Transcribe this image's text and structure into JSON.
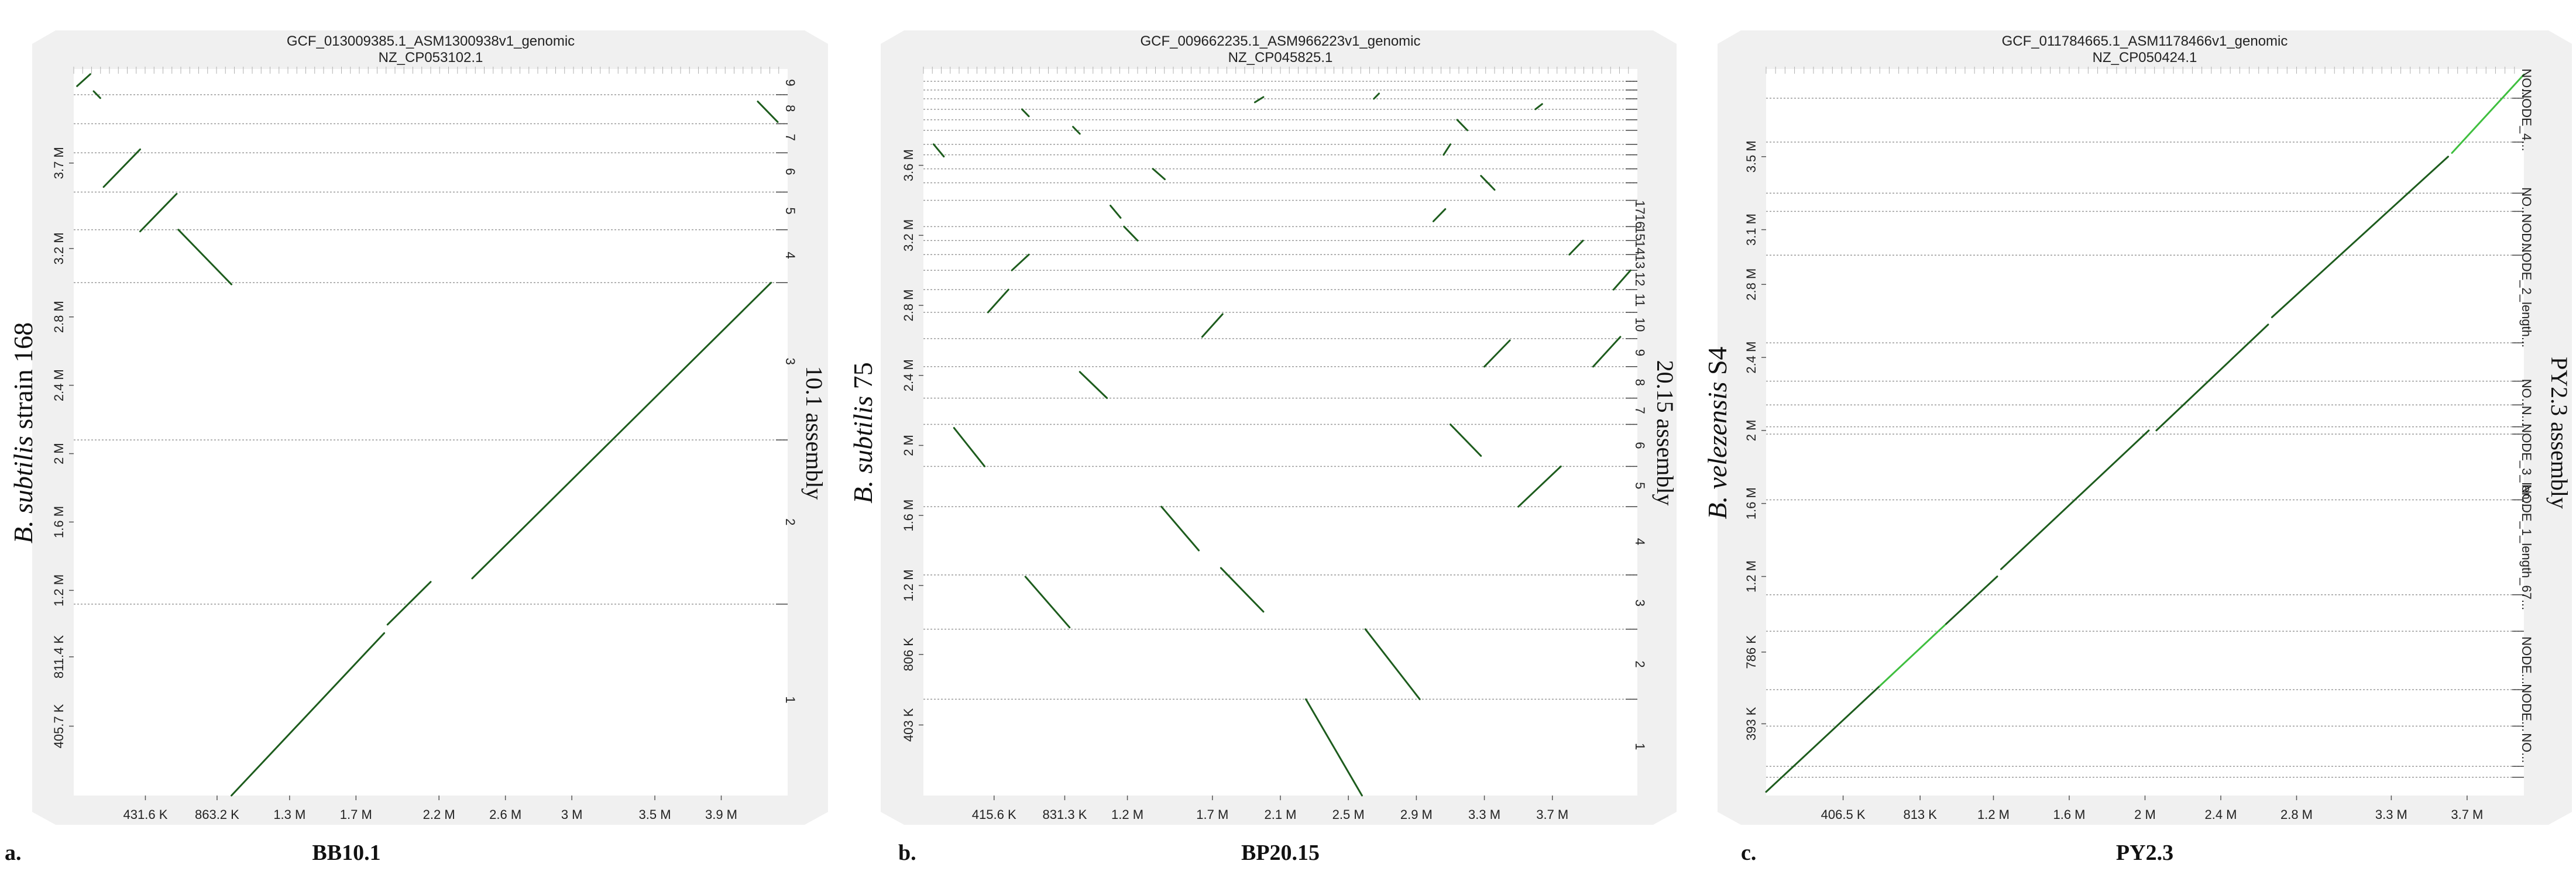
{
  "chart_data": [
    {
      "type": "scatter",
      "panel_letter": "a.",
      "panel_label": "BB10.1",
      "reference_title": "GCF_013009385.1_ASM1300938v1_genomic",
      "reference_subtitle": "NZ_CP053102.1",
      "ylabel_italic": "B. subtilis",
      "ylabel_rest": " strain 168",
      "right_label": "10.1 assembly",
      "xlim": [
        0,
        4.3
      ],
      "ylim": [
        0,
        4.25
      ],
      "x_ticks": [
        {
          "v": 0.4316,
          "label": "431.6 K"
        },
        {
          "v": 0.8632,
          "label": "863.2 K"
        },
        {
          "v": 1.3,
          "label": "1.3 M"
        },
        {
          "v": 1.7,
          "label": "1.7 M"
        },
        {
          "v": 2.2,
          "label": "2.2 M"
        },
        {
          "v": 2.6,
          "label": "2.6 M"
        },
        {
          "v": 3.0,
          "label": "3 M"
        },
        {
          "v": 3.5,
          "label": "3.5 M"
        },
        {
          "v": 3.9,
          "label": "3.9 M"
        }
      ],
      "y_ticks": [
        {
          "v": 0.4057,
          "label": "405.7 K"
        },
        {
          "v": 0.8114,
          "label": "811.4 K"
        },
        {
          "v": 1.2,
          "label": "1.2 M"
        },
        {
          "v": 1.6,
          "label": "1.6 M"
        },
        {
          "v": 2.0,
          "label": "2 M"
        },
        {
          "v": 2.4,
          "label": "2.4 M"
        },
        {
          "v": 2.8,
          "label": "2.8 M"
        },
        {
          "v": 3.2,
          "label": "3.2 M"
        },
        {
          "v": 3.7,
          "label": "3.7 M"
        }
      ],
      "contig_boundaries": [
        1.12,
        2.08,
        3.0,
        3.31,
        3.53,
        3.76,
        3.93,
        4.1
      ],
      "contig_labels": [
        {
          "v": 0.56,
          "label": "1"
        },
        {
          "v": 1.6,
          "label": "2"
        },
        {
          "v": 2.54,
          "label": "3"
        },
        {
          "v": 3.16,
          "label": "4"
        },
        {
          "v": 3.42,
          "label": "5"
        },
        {
          "v": 3.65,
          "label": "6"
        },
        {
          "v": 3.85,
          "label": "7"
        },
        {
          "v": 4.02,
          "label": "8"
        },
        {
          "v": 4.17,
          "label": "9"
        }
      ],
      "segments": [
        {
          "x1": 0.95,
          "y1": 0.0,
          "x2": 1.87,
          "y2": 0.95
        },
        {
          "x1": 1.89,
          "y1": 1.0,
          "x2": 2.15,
          "y2": 1.25
        },
        {
          "x1": 2.4,
          "y1": 1.27,
          "x2": 4.2,
          "y2": 3.0
        },
        {
          "x1": 0.63,
          "y1": 3.31,
          "x2": 0.95,
          "y2": 2.99
        },
        {
          "x1": 0.4,
          "y1": 3.3,
          "x2": 0.62,
          "y2": 3.52
        },
        {
          "x1": 0.18,
          "y1": 3.56,
          "x2": 0.4,
          "y2": 3.78
        },
        {
          "x1": 4.24,
          "y1": 3.94,
          "x2": 4.12,
          "y2": 4.06
        },
        {
          "x1": 0.02,
          "y1": 4.15,
          "x2": 0.1,
          "y2": 4.22
        },
        {
          "x1": 0.12,
          "y1": 4.12,
          "x2": 0.16,
          "y2": 4.08
        }
      ]
    },
    {
      "type": "scatter",
      "panel_letter": "b.",
      "panel_label": "BP20.15",
      "reference_title": "GCF_009662235.1_ASM966223v1_genomic",
      "reference_subtitle": "NZ_CP045825.1",
      "ylabel_italic": "B. subtilis",
      "ylabel_rest": " 75",
      "right_label": "20.15 assembly",
      "xlim": [
        0,
        4.2
      ],
      "ylim": [
        0,
        4.15
      ],
      "x_ticks": [
        {
          "v": 0.4156,
          "label": "415.6 K"
        },
        {
          "v": 0.8313,
          "label": "831.3 K"
        },
        {
          "v": 1.2,
          "label": "1.2 M"
        },
        {
          "v": 1.7,
          "label": "1.7 M"
        },
        {
          "v": 2.1,
          "label": "2.1 M"
        },
        {
          "v": 2.5,
          "label": "2.5 M"
        },
        {
          "v": 2.9,
          "label": "2.9 M"
        },
        {
          "v": 3.3,
          "label": "3.3 M"
        },
        {
          "v": 3.7,
          "label": "3.7 M"
        }
      ],
      "y_ticks": [
        {
          "v": 0.403,
          "label": "403 K"
        },
        {
          "v": 0.806,
          "label": "806 K"
        },
        {
          "v": 1.2,
          "label": "1.2 M"
        },
        {
          "v": 1.6,
          "label": "1.6 M"
        },
        {
          "v": 2.0,
          "label": "2 M"
        },
        {
          "v": 2.4,
          "label": "2.4 M"
        },
        {
          "v": 2.8,
          "label": "2.8 M"
        },
        {
          "v": 3.2,
          "label": "3.2 M"
        },
        {
          "v": 3.6,
          "label": "3.6 M"
        }
      ],
      "contig_boundaries": [
        0.55,
        0.95,
        1.26,
        1.65,
        1.88,
        2.12,
        2.27,
        2.45,
        2.61,
        2.76,
        2.89,
        3.0,
        3.09,
        3.17,
        3.25,
        3.4,
        3.5,
        3.58,
        3.66,
        3.72,
        3.8,
        3.86,
        3.92,
        3.98,
        4.03,
        4.08
      ],
      "contig_labels": [
        {
          "v": 0.28,
          "label": "1"
        },
        {
          "v": 0.75,
          "label": "2"
        },
        {
          "v": 1.1,
          "label": "3"
        },
        {
          "v": 1.45,
          "label": "4"
        },
        {
          "v": 1.77,
          "label": "5"
        },
        {
          "v": 2.0,
          "label": "6"
        },
        {
          "v": 2.2,
          "label": "7"
        },
        {
          "v": 2.36,
          "label": "8"
        },
        {
          "v": 2.53,
          "label": "9"
        },
        {
          "v": 2.69,
          "label": "10"
        },
        {
          "v": 2.83,
          "label": "11"
        },
        {
          "v": 2.95,
          "label": "12"
        },
        {
          "v": 3.05,
          "label": "13"
        },
        {
          "v": 3.13,
          "label": "14"
        },
        {
          "v": 3.21,
          "label": "15"
        },
        {
          "v": 3.28,
          "label": "16"
        },
        {
          "v": 3.36,
          "label": "17"
        }
      ],
      "segments": [
        {
          "x1": 2.25,
          "y1": 0.55,
          "x2": 2.58,
          "y2": 0.0
        },
        {
          "x1": 2.6,
          "y1": 0.95,
          "x2": 2.92,
          "y2": 0.55
        },
        {
          "x1": 0.6,
          "y1": 1.25,
          "x2": 0.86,
          "y2": 0.96
        },
        {
          "x1": 1.75,
          "y1": 1.3,
          "x2": 2.0,
          "y2": 1.05
        },
        {
          "x1": 1.4,
          "y1": 1.65,
          "x2": 1.62,
          "y2": 1.4
        },
        {
          "x1": 3.5,
          "y1": 1.65,
          "x2": 3.75,
          "y2": 1.88
        },
        {
          "x1": 0.18,
          "y1": 2.1,
          "x2": 0.36,
          "y2": 1.88
        },
        {
          "x1": 3.1,
          "y1": 2.12,
          "x2": 3.28,
          "y2": 1.94
        },
        {
          "x1": 0.92,
          "y1": 2.42,
          "x2": 1.08,
          "y2": 2.27
        },
        {
          "x1": 3.94,
          "y1": 2.45,
          "x2": 4.1,
          "y2": 2.62
        },
        {
          "x1": 3.3,
          "y1": 2.45,
          "x2": 3.45,
          "y2": 2.6
        },
        {
          "x1": 1.64,
          "y1": 2.62,
          "x2": 1.76,
          "y2": 2.75
        },
        {
          "x1": 0.38,
          "y1": 2.76,
          "x2": 0.5,
          "y2": 2.89
        },
        {
          "x1": 4.06,
          "y1": 2.89,
          "x2": 4.16,
          "y2": 3.0
        },
        {
          "x1": 0.52,
          "y1": 3.0,
          "x2": 0.62,
          "y2": 3.09
        },
        {
          "x1": 3.8,
          "y1": 3.09,
          "x2": 3.88,
          "y2": 3.17
        },
        {
          "x1": 1.18,
          "y1": 3.25,
          "x2": 1.26,
          "y2": 3.17
        },
        {
          "x1": 1.1,
          "y1": 3.37,
          "x2": 1.16,
          "y2": 3.3
        },
        {
          "x1": 3.0,
          "y1": 3.28,
          "x2": 3.07,
          "y2": 3.35
        },
        {
          "x1": 1.35,
          "y1": 3.58,
          "x2": 1.42,
          "y2": 3.52
        },
        {
          "x1": 3.28,
          "y1": 3.54,
          "x2": 3.36,
          "y2": 3.46
        },
        {
          "x1": 0.06,
          "y1": 3.72,
          "x2": 0.12,
          "y2": 3.65
        },
        {
          "x1": 3.06,
          "y1": 3.66,
          "x2": 3.1,
          "y2": 3.72
        },
        {
          "x1": 0.88,
          "y1": 3.82,
          "x2": 0.92,
          "y2": 3.78
        },
        {
          "x1": 3.14,
          "y1": 3.86,
          "x2": 3.2,
          "y2": 3.8
        },
        {
          "x1": 0.58,
          "y1": 3.92,
          "x2": 0.62,
          "y2": 3.88
        },
        {
          "x1": 1.95,
          "y1": 3.96,
          "x2": 2.0,
          "y2": 3.99
        },
        {
          "x1": 3.6,
          "y1": 3.92,
          "x2": 3.64,
          "y2": 3.95
        },
        {
          "x1": 2.65,
          "y1": 3.98,
          "x2": 2.68,
          "y2": 4.01
        }
      ]
    },
    {
      "type": "scatter",
      "panel_letter": "c.",
      "panel_label": "PY2.3",
      "reference_title": "GCF_011784665.1_ASM1178466v1_genomic",
      "reference_subtitle": "NZ_CP050424.1",
      "ylabel_italic": "B. velezensis",
      "ylabel_rest": " S4",
      "right_label": "PY2.3 assembly",
      "xlim": [
        0,
        4.0
      ],
      "ylim": [
        0,
        3.98
      ],
      "x_ticks": [
        {
          "v": 0.4065,
          "label": "406.5 K"
        },
        {
          "v": 0.813,
          "label": "813 K"
        },
        {
          "v": 1.2,
          "label": "1.2 M"
        },
        {
          "v": 1.6,
          "label": "1.6 M"
        },
        {
          "v": 2.0,
          "label": "2 M"
        },
        {
          "v": 2.4,
          "label": "2.4 M"
        },
        {
          "v": 2.8,
          "label": "2.8 M"
        },
        {
          "v": 3.3,
          "label": "3.3 M"
        },
        {
          "v": 3.7,
          "label": "3.7 M"
        }
      ],
      "y_ticks": [
        {
          "v": 0.393,
          "label": "393 K"
        },
        {
          "v": 0.786,
          "label": "786 K"
        },
        {
          "v": 1.2,
          "label": "1.2 M"
        },
        {
          "v": 1.6,
          "label": "1.6 M"
        },
        {
          "v": 2.0,
          "label": "2 M"
        },
        {
          "v": 2.4,
          "label": "2.4 M"
        },
        {
          "v": 2.8,
          "label": "2.8 M"
        },
        {
          "v": 3.1,
          "label": "3.1 M"
        },
        {
          "v": 3.5,
          "label": "3.5 M"
        }
      ],
      "contig_boundaries": [
        0.1,
        0.16,
        0.38,
        0.58,
        0.9,
        1.1,
        1.62,
        1.98,
        2.02,
        2.14,
        2.27,
        2.48,
        2.96,
        3.2,
        3.3,
        3.58,
        3.82
      ],
      "contig_labels": [
        {
          "v": 0.26,
          "label": "NO..."
        },
        {
          "v": 0.48,
          "label": "NODE..."
        },
        {
          "v": 0.74,
          "label": "NODE..."
        },
        {
          "v": 1.36,
          "label": "NODE_1_length_67..."
        },
        {
          "v": 1.8,
          "label": "NODE_3_len..."
        },
        {
          "v": 2.08,
          "label": "N..."
        },
        {
          "v": 2.2,
          "label": "NO..."
        },
        {
          "v": 2.74,
          "label": "NODE_2_length..."
        },
        {
          "v": 3.08,
          "label": "NOD..."
        },
        {
          "v": 3.25,
          "label": "NO..."
        },
        {
          "v": 3.7,
          "label": "NODE_4..."
        },
        {
          "v": 3.9,
          "label": "NO..."
        }
      ],
      "segments": [
        {
          "x1": 0.0,
          "y1": 0.02,
          "x2": 0.6,
          "y2": 0.6,
          "light": false
        },
        {
          "x1": 0.6,
          "y1": 0.6,
          "x2": 0.95,
          "y2": 0.94,
          "light": true
        },
        {
          "x1": 0.95,
          "y1": 0.94,
          "x2": 1.22,
          "y2": 1.2,
          "light": false
        },
        {
          "x1": 1.24,
          "y1": 1.24,
          "x2": 2.02,
          "y2": 2.0,
          "light": false
        },
        {
          "x1": 2.06,
          "y1": 2.0,
          "x2": 2.65,
          "y2": 2.58,
          "light": false
        },
        {
          "x1": 2.67,
          "y1": 2.62,
          "x2": 3.6,
          "y2": 3.5,
          "light": false
        },
        {
          "x1": 3.62,
          "y1": 3.52,
          "x2": 4.0,
          "y2": 3.95,
          "light": true
        }
      ]
    }
  ]
}
